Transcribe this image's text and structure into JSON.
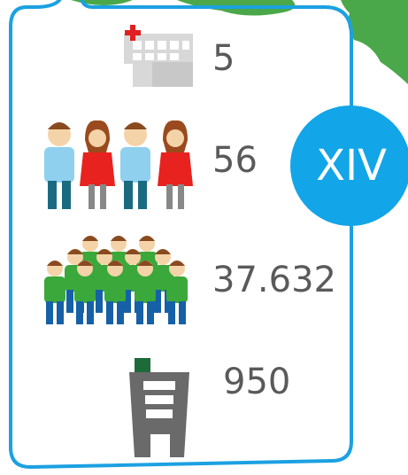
{
  "badge": "XIV",
  "items": [
    {
      "label": "5"
    },
    {
      "label": "56"
    },
    {
      "label": "37.632"
    },
    {
      "label": "950"
    }
  ]
}
